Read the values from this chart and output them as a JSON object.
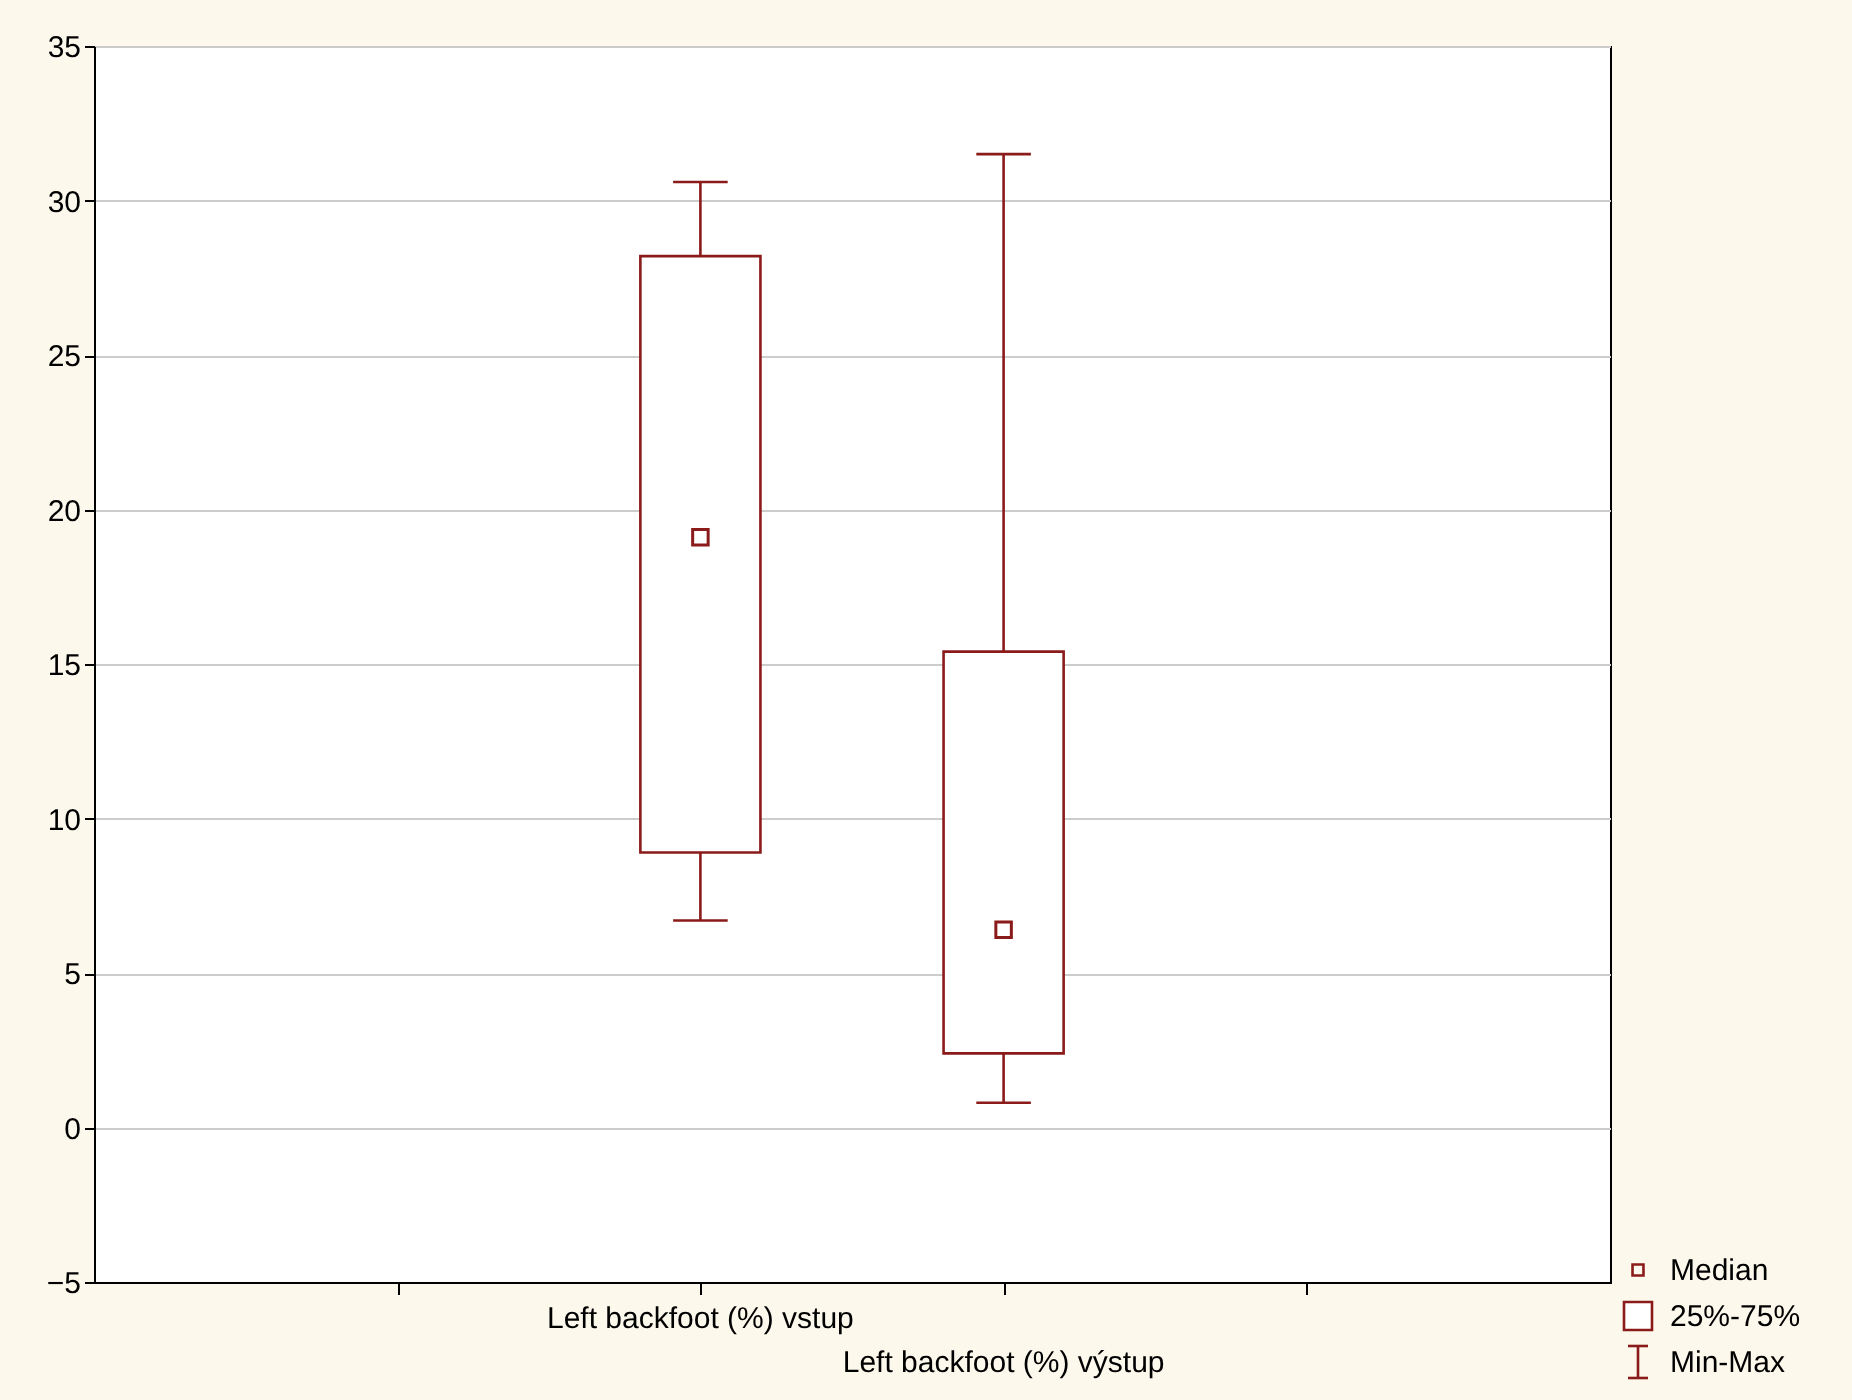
{
  "chart_data": {
    "type": "box",
    "categories": [
      "Left  backfoot (%) vstup",
      "Left  backfoot (%) výstup"
    ],
    "boxes": [
      {
        "low": 6.7,
        "q1": 8.9,
        "median": 19.1,
        "q3": 28.2,
        "high": 30.6
      },
      {
        "low": 0.8,
        "q1": 2.4,
        "median": 6.4,
        "q3": 15.4,
        "high": 31.5
      }
    ],
    "color": "#8b1a1a",
    "ylim": [
      -5,
      35
    ],
    "yticks": [
      -5,
      0,
      5,
      10,
      15,
      20,
      25,
      30,
      35
    ],
    "grid": "y",
    "annotations": [
      "Median",
      "25%-75%",
      "Min-Max"
    ]
  }
}
